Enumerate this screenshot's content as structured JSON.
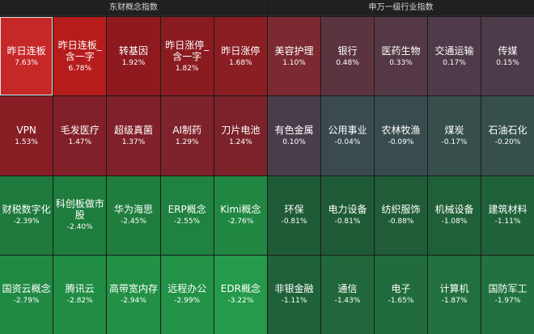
{
  "left_panel": {
    "title": "东财概念指数",
    "tiles": [
      {
        "name": "昨日连板",
        "change": "7.63%",
        "color": "#c62828",
        "selected": true
      },
      {
        "name": "昨日连板_含一字",
        "change": "6.78%",
        "color": "#b71c1c"
      },
      {
        "name": "转基因",
        "change": "1.92%",
        "color": "#8e1a1f"
      },
      {
        "name": "昨日涨停_含一字",
        "change": "1.82%",
        "color": "#8a1c21"
      },
      {
        "name": "昨日涨停",
        "change": "1.68%",
        "color": "#8a1e23"
      },
      {
        "name": "VPN",
        "change": "1.53%",
        "color": "#861e24"
      },
      {
        "name": "毛发医疗",
        "change": "1.47%",
        "color": "#82202a"
      },
      {
        "name": "超级真菌",
        "change": "1.37%",
        "color": "#80202a"
      },
      {
        "name": "AI制药",
        "change": "1.29%",
        "color": "#7e222b"
      },
      {
        "name": "刀片电池",
        "change": "1.24%",
        "color": "#7c222b"
      },
      {
        "name": "财税数字化",
        "change": "-2.39%",
        "color": "#1e7a3c"
      },
      {
        "name": "科创板做市股",
        "change": "-2.40%",
        "color": "#1e7c3d"
      },
      {
        "name": "华为海思",
        "change": "-2.45%",
        "color": "#1f7e3e"
      },
      {
        "name": "ERP概念",
        "change": "-2.55%",
        "color": "#1f8240"
      },
      {
        "name": "Kimi概念",
        "change": "-2.76%",
        "color": "#208842"
      },
      {
        "name": "国资云概念",
        "change": "-2.79%",
        "color": "#208a43"
      },
      {
        "name": "腾讯云",
        "change": "-2.82%",
        "color": "#218c44"
      },
      {
        "name": "高带宽内存",
        "change": "-2.94%",
        "color": "#229045"
      },
      {
        "name": "远程办公",
        "change": "-2.99%",
        "color": "#229246"
      },
      {
        "name": "EDR概念",
        "change": "-3.22%",
        "color": "#249a4a"
      }
    ]
  },
  "right_panel": {
    "title": "申万一级行业指数",
    "tiles": [
      {
        "name": "美容护理",
        "change": "1.10%",
        "color": "#7a2a30"
      },
      {
        "name": "银行",
        "change": "0.48%",
        "color": "#5c3440"
      },
      {
        "name": "医药生物",
        "change": "0.33%",
        "color": "#553845"
      },
      {
        "name": "交通运输",
        "change": "0.17%",
        "color": "#4e3a48"
      },
      {
        "name": "传媒",
        "change": "0.15%",
        "color": "#4c3b49"
      },
      {
        "name": "有色金属",
        "change": "0.10%",
        "color": "#4a3d4b"
      },
      {
        "name": "公用事业",
        "change": "-0.04%",
        "color": "#3a4a4e"
      },
      {
        "name": "农林牧渔",
        "change": "-0.09%",
        "color": "#384c4e"
      },
      {
        "name": "煤炭",
        "change": "-0.17%",
        "color": "#364e4c"
      },
      {
        "name": "石油石化",
        "change": "-0.20%",
        "color": "#344f4c"
      },
      {
        "name": "环保",
        "change": "-0.81%",
        "color": "#1f5a36"
      },
      {
        "name": "电力设备",
        "change": "-0.81%",
        "color": "#1f5a36"
      },
      {
        "name": "纺织服饰",
        "change": "-0.88%",
        "color": "#1f5c37"
      },
      {
        "name": "机械设备",
        "change": "-1.08%",
        "color": "#1f6038"
      },
      {
        "name": "建筑材料",
        "change": "-1.11%",
        "color": "#1f6239"
      },
      {
        "name": "非银金融",
        "change": "-1.11%",
        "color": "#1f6239"
      },
      {
        "name": "通信",
        "change": "-1.43%",
        "color": "#20683b"
      },
      {
        "name": "电子",
        "change": "-1.65%",
        "color": "#206c3c"
      },
      {
        "name": "计算机",
        "change": "-1.87%",
        "color": "#21703e"
      },
      {
        "name": "国防军工",
        "change": "-1.97%",
        "color": "#21723f"
      }
    ]
  }
}
